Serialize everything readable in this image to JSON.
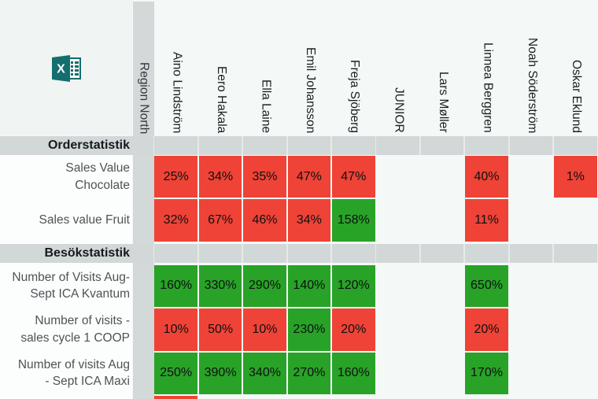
{
  "page": {
    "background": "#f4f9f8",
    "top_left_background": "#f0f4f3",
    "label_column_background": "#fcfdfd",
    "band_color": "#d2d8d7"
  },
  "app_icon": {
    "name": "excel-icon",
    "color": "#136e6d"
  },
  "colors": {
    "red": "#ee4336",
    "green": "#28a327"
  },
  "table": {
    "region_label": "Region North",
    "columns": [
      "Aino Lindström",
      "Eero Hakala",
      "Ella Laine",
      "Emil Johansson",
      "Freja Sjöberg",
      "JUNIOR",
      "Lars Møller",
      "Linnea Berggren",
      "Noah Söderström",
      "Oskar Eklund"
    ],
    "sections": [
      {
        "title": "Orderstatistik",
        "rows": [
          {
            "label_lines": [
              "Sales Value",
              "Chocolate"
            ],
            "cells": [
              {
                "value": "25%",
                "status": "red"
              },
              {
                "value": "34%",
                "status": "red"
              },
              {
                "value": "35%",
                "status": "red"
              },
              {
                "value": "47%",
                "status": "red"
              },
              {
                "value": "47%",
                "status": "red"
              },
              null,
              null,
              {
                "value": "40%",
                "status": "red"
              },
              null,
              {
                "value": "1%",
                "status": "red"
              }
            ]
          },
          {
            "label_lines": [
              "Sales value Fruit"
            ],
            "cells": [
              {
                "value": "32%",
                "status": "red"
              },
              {
                "value": "67%",
                "status": "red"
              },
              {
                "value": "46%",
                "status": "red"
              },
              {
                "value": "34%",
                "status": "red"
              },
              {
                "value": "158%",
                "status": "green"
              },
              null,
              null,
              {
                "value": "11%",
                "status": "red"
              },
              null,
              null
            ]
          }
        ]
      },
      {
        "title": "Besökstatistik",
        "rows": [
          {
            "label_lines": [
              "Number of Visits Aug-",
              "Sept ICA Kvantum"
            ],
            "cells": [
              {
                "value": "160%",
                "status": "green"
              },
              {
                "value": "330%",
                "status": "green"
              },
              {
                "value": "290%",
                "status": "green"
              },
              {
                "value": "140%",
                "status": "green"
              },
              {
                "value": "120%",
                "status": "green"
              },
              null,
              null,
              {
                "value": "650%",
                "status": "green"
              },
              null,
              null
            ]
          },
          {
            "label_lines": [
              "Number of visits -",
              "sales cycle 1 COOP"
            ],
            "cells": [
              {
                "value": "10%",
                "status": "red"
              },
              {
                "value": "50%",
                "status": "red"
              },
              {
                "value": "10%",
                "status": "red"
              },
              {
                "value": "230%",
                "status": "green"
              },
              {
                "value": "20%",
                "status": "red"
              },
              null,
              null,
              {
                "value": "20%",
                "status": "red"
              },
              null,
              null
            ]
          },
          {
            "label_lines": [
              "Number of visits Aug",
              "- Sept ICA Maxi"
            ],
            "cells": [
              {
                "value": "250%",
                "status": "green"
              },
              {
                "value": "390%",
                "status": "green"
              },
              {
                "value": "340%",
                "status": "green"
              },
              {
                "value": "270%",
                "status": "green"
              },
              {
                "value": "160%",
                "status": "green"
              },
              null,
              null,
              {
                "value": "170%",
                "status": "green"
              },
              null,
              null
            ]
          }
        ]
      }
    ],
    "cutoff_row_cells": [
      {
        "col": 0,
        "status": "red"
      }
    ]
  }
}
